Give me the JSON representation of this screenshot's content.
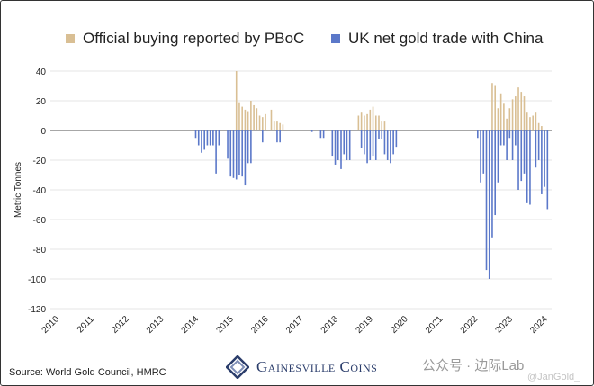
{
  "chart_data": {
    "type": "bar",
    "title": "",
    "xlabel": "",
    "ylabel": "Metric Tonnes",
    "ylim": [
      -120,
      40
    ],
    "yticks": [
      40,
      20,
      0,
      -20,
      -40,
      -60,
      -80,
      -100,
      -120
    ],
    "xticks": [
      "2010",
      "2011",
      "2012",
      "2013",
      "2014",
      "2015",
      "2016",
      "2017",
      "2018",
      "2019",
      "2020",
      "2021",
      "2022",
      "2023",
      "2024"
    ],
    "grid": true,
    "legend_position": "top",
    "series": [
      {
        "name": "Official buying reported by PBoC",
        "color": "#d9bf94",
        "points": [
          [
            "2015-05",
            40
          ],
          [
            "2015-06",
            19
          ],
          [
            "2015-07",
            16
          ],
          [
            "2015-08",
            14
          ],
          [
            "2015-09",
            13
          ],
          [
            "2015-10",
            20
          ],
          [
            "2015-11",
            17
          ],
          [
            "2015-12",
            15
          ],
          [
            "2016-01",
            10
          ],
          [
            "2016-02",
            9
          ],
          [
            "2016-03",
            11
          ],
          [
            "2016-05",
            14
          ],
          [
            "2016-06",
            6
          ],
          [
            "2016-07",
            6
          ],
          [
            "2016-08",
            5
          ],
          [
            "2016-09",
            4
          ],
          [
            "2018-11",
            10
          ],
          [
            "2018-12",
            12
          ],
          [
            "2019-01",
            10
          ],
          [
            "2019-02",
            11
          ],
          [
            "2019-03",
            14
          ],
          [
            "2019-04",
            16
          ],
          [
            "2019-05",
            10
          ],
          [
            "2019-06",
            10
          ],
          [
            "2019-07",
            6
          ],
          [
            "2019-08",
            6
          ],
          [
            "2022-09",
            32
          ],
          [
            "2022-10",
            30
          ],
          [
            "2022-11",
            15
          ],
          [
            "2022-12",
            25
          ],
          [
            "2023-01",
            18
          ],
          [
            "2023-02",
            8
          ],
          [
            "2023-03",
            15
          ],
          [
            "2023-04",
            21
          ],
          [
            "2023-05",
            23
          ],
          [
            "2023-06",
            29
          ],
          [
            "2023-07",
            26
          ],
          [
            "2023-08",
            23
          ],
          [
            "2023-09",
            12
          ],
          [
            "2023-10",
            9
          ],
          [
            "2023-11",
            10
          ],
          [
            "2023-12",
            12
          ],
          [
            "2024-01",
            5
          ],
          [
            "2024-02",
            3
          ]
        ]
      },
      {
        "name": "UK net gold trade with China",
        "color": "#5b78c9",
        "points": [
          [
            "2014-03",
            -5
          ],
          [
            "2014-04",
            -10
          ],
          [
            "2014-05",
            -15
          ],
          [
            "2014-06",
            -13
          ],
          [
            "2014-07",
            -10
          ],
          [
            "2014-08",
            -10
          ],
          [
            "2014-09",
            -10
          ],
          [
            "2014-10",
            -29
          ],
          [
            "2014-11",
            -10
          ],
          [
            "2015-02",
            -19
          ],
          [
            "2015-03",
            -31
          ],
          [
            "2015-04",
            -32
          ],
          [
            "2015-05",
            -33
          ],
          [
            "2015-06",
            -30
          ],
          [
            "2015-07",
            -31
          ],
          [
            "2015-08",
            -37
          ],
          [
            "2015-09",
            -22
          ],
          [
            "2015-10",
            -22
          ],
          [
            "2016-02",
            -8
          ],
          [
            "2016-07",
            -8
          ],
          [
            "2016-08",
            -8
          ],
          [
            "2017-07",
            -1
          ],
          [
            "2017-10",
            -5
          ],
          [
            "2017-11",
            -5
          ],
          [
            "2018-02",
            -17
          ],
          [
            "2018-03",
            -23
          ],
          [
            "2018-04",
            -20
          ],
          [
            "2018-05",
            -26
          ],
          [
            "2018-06",
            -16
          ],
          [
            "2018-07",
            -20
          ],
          [
            "2018-08",
            -20
          ],
          [
            "2018-12",
            -12
          ],
          [
            "2019-01",
            -16
          ],
          [
            "2019-02",
            -22
          ],
          [
            "2019-03",
            -20
          ],
          [
            "2019-04",
            -17
          ],
          [
            "2019-05",
            -20
          ],
          [
            "2019-06",
            -6
          ],
          [
            "2019-07",
            -6
          ],
          [
            "2019-08",
            -16
          ],
          [
            "2019-09",
            -20
          ],
          [
            "2019-10",
            -22
          ],
          [
            "2019-11",
            -16
          ],
          [
            "2019-12",
            -11
          ],
          [
            "2022-04",
            -5
          ],
          [
            "2022-05",
            -35
          ],
          [
            "2022-06",
            -29
          ],
          [
            "2022-07",
            -94
          ],
          [
            "2022-08",
            -100
          ],
          [
            "2022-09",
            -72
          ],
          [
            "2022-10",
            -57
          ],
          [
            "2022-11",
            -35
          ],
          [
            "2022-12",
            -10
          ],
          [
            "2023-01",
            -10
          ],
          [
            "2023-02",
            -20
          ],
          [
            "2023-03",
            -5
          ],
          [
            "2023-04",
            -20
          ],
          [
            "2023-05",
            -10
          ],
          [
            "2023-06",
            -40
          ],
          [
            "2023-07",
            -34
          ],
          [
            "2023-08",
            -29
          ],
          [
            "2023-09",
            -49
          ],
          [
            "2023-10",
            -50
          ],
          [
            "2023-12",
            -25
          ],
          [
            "2024-01",
            -20
          ],
          [
            "2024-02",
            -43
          ],
          [
            "2024-03",
            -38
          ],
          [
            "2024-04",
            -53
          ]
        ]
      }
    ]
  },
  "legend": {
    "pboc": "Official buying reported by PBoC",
    "uk": "UK net gold trade with China"
  },
  "source": "Source: World Gold Council, HMRC",
  "logo_text": "Gainesville Coins",
  "watermark": {
    "main": "公众号 · 边际Lab",
    "handle": "@JanGold_"
  }
}
